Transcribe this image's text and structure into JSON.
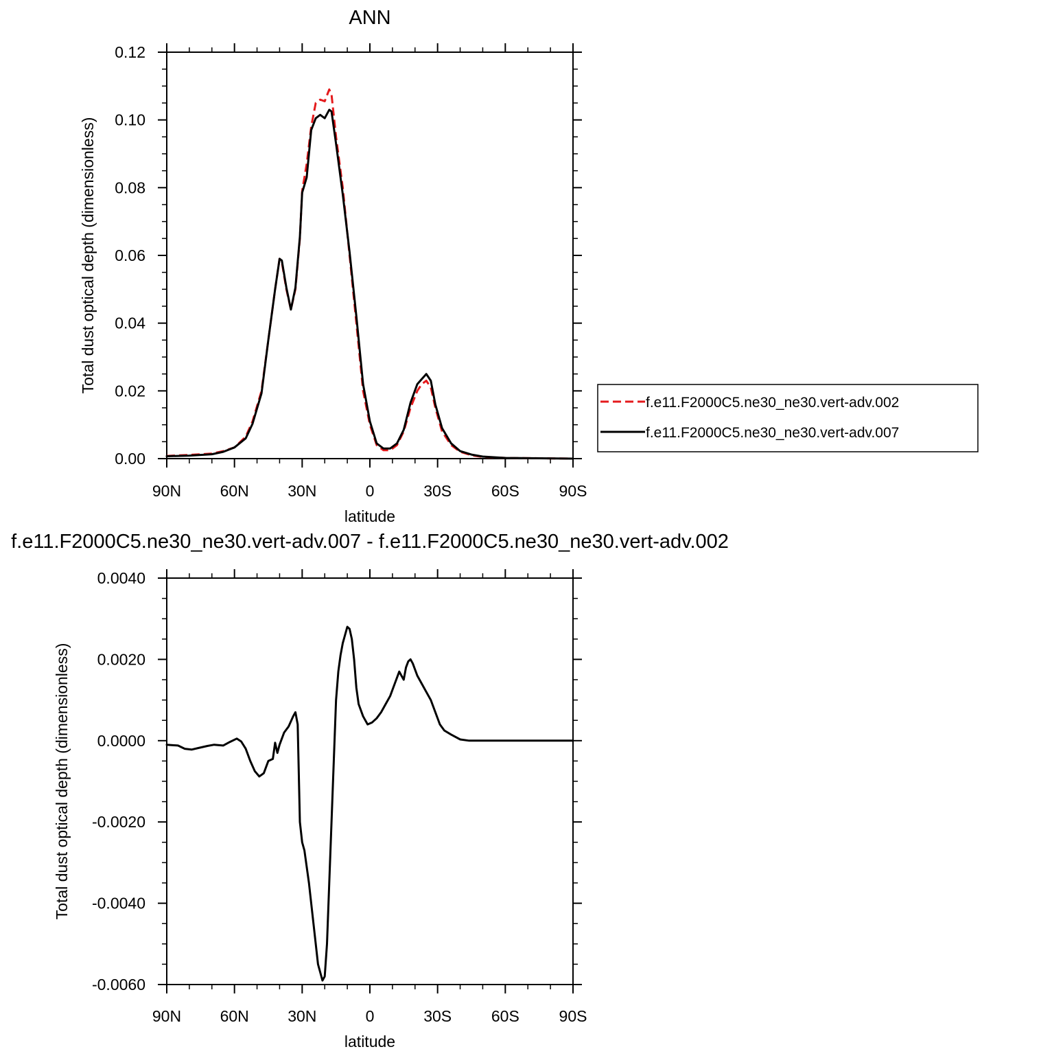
{
  "chart_data": [
    {
      "type": "line",
      "title": "ANN",
      "xlabel": "latitude",
      "ylabel": "Total dust optical depth (dimensionless)",
      "xlim": [
        90,
        -90
      ],
      "ylim": [
        0,
        0.12
      ],
      "xticks": [
        {
          "value": 90,
          "label": "90N"
        },
        {
          "value": 60,
          "label": "60N"
        },
        {
          "value": 30,
          "label": "30N"
        },
        {
          "value": 0,
          "label": "0"
        },
        {
          "value": -30,
          "label": "30S"
        },
        {
          "value": -60,
          "label": "60S"
        },
        {
          "value": -90,
          "label": "90S"
        }
      ],
      "yticks": [
        {
          "value": 0,
          "label": "0.00"
        },
        {
          "value": 0.02,
          "label": "0.02"
        },
        {
          "value": 0.04,
          "label": "0.04"
        },
        {
          "value": 0.06,
          "label": "0.06"
        },
        {
          "value": 0.08,
          "label": "0.08"
        },
        {
          "value": 0.1,
          "label": "0.10"
        },
        {
          "value": 0.12,
          "label": "0.12"
        }
      ],
      "legend_position": "right",
      "series": [
        {
          "name": "f.e11.F2000C5.ne30_ne30.vert-adv.002",
          "color": "#e41a1c",
          "dash": "dashed",
          "points": [
            [
              90,
              0.0008
            ],
            [
              80,
              0.0011
            ],
            [
              70,
              0.0015
            ],
            [
              65,
              0.0022
            ],
            [
              60,
              0.0033
            ],
            [
              55,
              0.0065
            ],
            [
              52,
              0.011
            ],
            [
              48,
              0.02
            ],
            [
              45,
              0.035
            ],
            [
              42,
              0.05
            ],
            [
              40,
              0.059
            ],
            [
              39,
              0.058
            ],
            [
              37,
              0.05
            ],
            [
              35,
              0.044
            ],
            [
              33,
              0.05
            ],
            [
              31,
              0.065
            ],
            [
              30,
              0.079
            ],
            [
              28,
              0.087
            ],
            [
              26,
              0.098
            ],
            [
              24,
              0.105
            ],
            [
              22,
              0.106
            ],
            [
              20,
              0.1055
            ],
            [
              18,
              0.109
            ],
            [
              17,
              0.1075
            ],
            [
              15,
              0.095
            ],
            [
              12,
              0.08
            ],
            [
              9,
              0.06
            ],
            [
              6,
              0.04
            ],
            [
              3,
              0.02
            ],
            [
              0,
              0.01
            ],
            [
              -3,
              0.004
            ],
            [
              -6,
              0.0025
            ],
            [
              -9,
              0.0025
            ],
            [
              -12,
              0.004
            ],
            [
              -15,
              0.008
            ],
            [
              -18,
              0.015
            ],
            [
              -21,
              0.02
            ],
            [
              -23,
              0.022
            ],
            [
              -25,
              0.023
            ],
            [
              -27,
              0.021
            ],
            [
              -29,
              0.015
            ],
            [
              -32,
              0.008
            ],
            [
              -36,
              0.004
            ],
            [
              -40,
              0.002
            ],
            [
              -45,
              0.001
            ],
            [
              -50,
              0.0005
            ],
            [
              -60,
              0.0002
            ],
            [
              -75,
              0.0001
            ],
            [
              -90,
              0.0
            ]
          ]
        },
        {
          "name": "f.e11.F2000C5.ne30_ne30.vert-adv.007",
          "color": "#000000",
          "dash": "solid",
          "points": [
            [
              90,
              0.0007
            ],
            [
              80,
              0.0009
            ],
            [
              70,
              0.0013
            ],
            [
              65,
              0.002
            ],
            [
              60,
              0.0033
            ],
            [
              55,
              0.006
            ],
            [
              52,
              0.0103
            ],
            [
              48,
              0.0193
            ],
            [
              45,
              0.035
            ],
            [
              42,
              0.05
            ],
            [
              40,
              0.059
            ],
            [
              39,
              0.0585
            ],
            [
              37,
              0.0505
            ],
            [
              35,
              0.044
            ],
            [
              33,
              0.0505
            ],
            [
              31,
              0.0655
            ],
            [
              30,
              0.0785
            ],
            [
              28,
              0.083
            ],
            [
              26,
              0.097
            ],
            [
              24,
              0.1005
            ],
            [
              22,
              0.1015
            ],
            [
              20,
              0.1005
            ],
            [
              18,
              0.103
            ],
            [
              17,
              0.1025
            ],
            [
              15,
              0.093
            ],
            [
              12,
              0.078
            ],
            [
              9,
              0.061
            ],
            [
              6,
              0.042
            ],
            [
              3,
              0.022
            ],
            [
              0,
              0.011
            ],
            [
              -3,
              0.0045
            ],
            [
              -6,
              0.003
            ],
            [
              -9,
              0.003
            ],
            [
              -12,
              0.0045
            ],
            [
              -15,
              0.0085
            ],
            [
              -18,
              0.0165
            ],
            [
              -21,
              0.022
            ],
            [
              -23,
              0.0235
            ],
            [
              -25,
              0.025
            ],
            [
              -27,
              0.023
            ],
            [
              -29,
              0.016
            ],
            [
              -32,
              0.009
            ],
            [
              -36,
              0.0045
            ],
            [
              -40,
              0.0022
            ],
            [
              -45,
              0.0012
            ],
            [
              -50,
              0.0006
            ],
            [
              -60,
              0.0002
            ],
            [
              -75,
              0.0001
            ],
            [
              -90,
              0.0
            ]
          ]
        }
      ]
    },
    {
      "type": "line",
      "title": "f.e11.F2000C5.ne30_ne30.vert-adv.007 - f.e11.F2000C5.ne30_ne30.vert-adv.002",
      "xlabel": "latitude",
      "ylabel": "Total dust optical depth (dimensionless)",
      "xlim": [
        90,
        -90
      ],
      "ylim": [
        -0.006,
        0.004
      ],
      "xticks": [
        {
          "value": 90,
          "label": "90N"
        },
        {
          "value": 60,
          "label": "60N"
        },
        {
          "value": 30,
          "label": "30N"
        },
        {
          "value": 0,
          "label": "0"
        },
        {
          "value": -30,
          "label": "30S"
        },
        {
          "value": -60,
          "label": "60S"
        },
        {
          "value": -90,
          "label": "90S"
        }
      ],
      "yticks": [
        {
          "value": -0.006,
          "label": "-0.0060"
        },
        {
          "value": -0.004,
          "label": "-0.0040"
        },
        {
          "value": -0.002,
          "label": "-0.0020"
        },
        {
          "value": 0,
          "label": "0.0000"
        },
        {
          "value": 0.002,
          "label": "0.0020"
        },
        {
          "value": 0.004,
          "label": "0.0040"
        }
      ],
      "series": [
        {
          "color": "#000000",
          "dash": "solid",
          "points": [
            [
              90,
              -0.0001
            ],
            [
              85,
              -0.00012
            ],
            [
              82,
              -0.0002
            ],
            [
              79,
              -0.00022
            ],
            [
              76,
              -0.00018
            ],
            [
              72,
              -0.00013
            ],
            [
              69,
              -0.0001
            ],
            [
              65,
              -0.00012
            ],
            [
              62,
              -3e-05
            ],
            [
              59,
              5e-05
            ],
            [
              57,
              -2e-05
            ],
            [
              55,
              -0.0002
            ],
            [
              53,
              -0.0005
            ],
            [
              51,
              -0.00075
            ],
            [
              49,
              -0.00088
            ],
            [
              47,
              -0.0008
            ],
            [
              45,
              -0.0005
            ],
            [
              43,
              -0.00045
            ],
            [
              42,
              -5e-05
            ],
            [
              41,
              -0.0003
            ],
            [
              40,
              -0.0001
            ],
            [
              38,
              0.0002
            ],
            [
              36,
              0.00035
            ],
            [
              34,
              0.0006
            ],
            [
              33,
              0.0007
            ],
            [
              32,
              0.0004
            ],
            [
              31,
              -0.002
            ],
            [
              30,
              -0.0025
            ],
            [
              29,
              -0.0027
            ],
            [
              27,
              -0.0035
            ],
            [
              25,
              -0.0045
            ],
            [
              23,
              -0.0055
            ],
            [
              21,
              -0.0059
            ],
            [
              20,
              -0.0058
            ],
            [
              19,
              -0.005
            ],
            [
              18,
              -0.0035
            ],
            [
              17,
              -0.002
            ],
            [
              16,
              -0.0005
            ],
            [
              15,
              0.001
            ],
            [
              14,
              0.0017
            ],
            [
              13,
              0.0021
            ],
            [
              12,
              0.0024
            ],
            [
              11,
              0.0026
            ],
            [
              10,
              0.0028
            ],
            [
              9,
              0.00275
            ],
            [
              8,
              0.0025
            ],
            [
              7,
              0.002
            ],
            [
              6,
              0.0013
            ],
            [
              5,
              0.0009
            ],
            [
              3,
              0.0006
            ],
            [
              1,
              0.0004
            ],
            [
              -1,
              0.00045
            ],
            [
              -3,
              0.00055
            ],
            [
              -5,
              0.0007
            ],
            [
              -7,
              0.0009
            ],
            [
              -9,
              0.0011
            ],
            [
              -11,
              0.0014
            ],
            [
              -13,
              0.0017
            ],
            [
              -14,
              0.0016
            ],
            [
              -15,
              0.0015
            ],
            [
              -16,
              0.0018
            ],
            [
              -17,
              0.00195
            ],
            [
              -18,
              0.002
            ],
            [
              -19,
              0.0019
            ],
            [
              -21,
              0.0016
            ],
            [
              -23,
              0.0014
            ],
            [
              -25,
              0.0012
            ],
            [
              -27,
              0.001
            ],
            [
              -29,
              0.0007
            ],
            [
              -31,
              0.0004
            ],
            [
              -33,
              0.00025
            ],
            [
              -36,
              0.00015
            ],
            [
              -40,
              3e-05
            ],
            [
              -44,
              0.0
            ],
            [
              -50,
              0.0
            ],
            [
              -60,
              0.0
            ],
            [
              -75,
              0.0
            ],
            [
              -90,
              0.0
            ]
          ]
        }
      ]
    }
  ]
}
